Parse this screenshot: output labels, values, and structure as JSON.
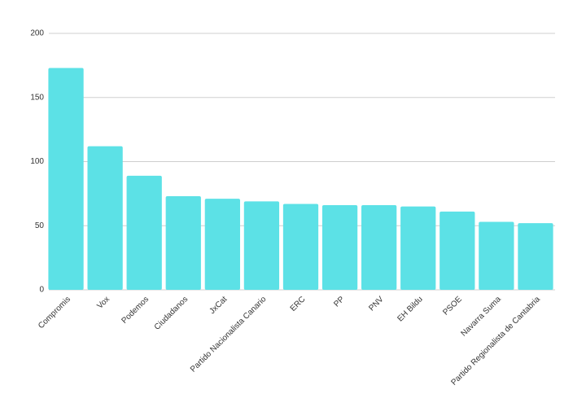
{
  "chart_data": {
    "type": "bar",
    "categories": [
      "Compromis",
      "Vox",
      "Podemos",
      "Ciudadanos",
      "JxCat",
      "Partido Nacionalista Canario",
      "ERC",
      "PP",
      "PNV",
      "EH Bildu",
      "PSOE",
      "Navarra Suma",
      "Partido Regionalista de Cantabria"
    ],
    "values": [
      173,
      112,
      89,
      73,
      71,
      69,
      67,
      66,
      66,
      65,
      61,
      53,
      52
    ],
    "color": "#5ce1e6",
    "ylim": [
      0,
      200
    ],
    "yticks": [
      0,
      50,
      100,
      150,
      200
    ],
    "grid": true
  }
}
